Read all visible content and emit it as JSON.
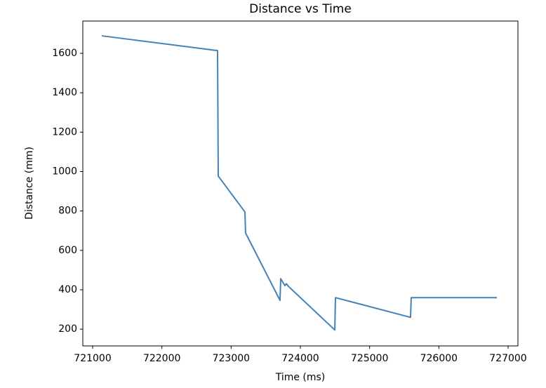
{
  "chart_data": {
    "type": "line",
    "title": "Distance vs Time",
    "x_label": "Time (ms)",
    "y_label": "Distance (mm)",
    "x": [
      721132,
      722804,
      722814,
      723199,
      723209,
      723706,
      723716,
      723777,
      723797,
      723828,
      724497,
      724507,
      725591,
      725601,
      726838
    ],
    "series": [
      {
        "name": "Distance",
        "color": "#4682b4",
        "values": [
          1689,
          1614,
          977,
          795,
          688,
          346,
          456,
          421,
          431,
          417,
          196,
          360,
          260,
          360,
          360
        ]
      }
    ],
    "xlim": [
      720858,
      727142
    ],
    "xticks": [
      721000,
      722000,
      723000,
      724000,
      725000,
      726000,
      727000
    ],
    "ylim": [
      115,
      1764
    ],
    "yticks": [
      200,
      400,
      600,
      800,
      1000,
      1200,
      1400,
      1600
    ],
    "grid": false
  }
}
